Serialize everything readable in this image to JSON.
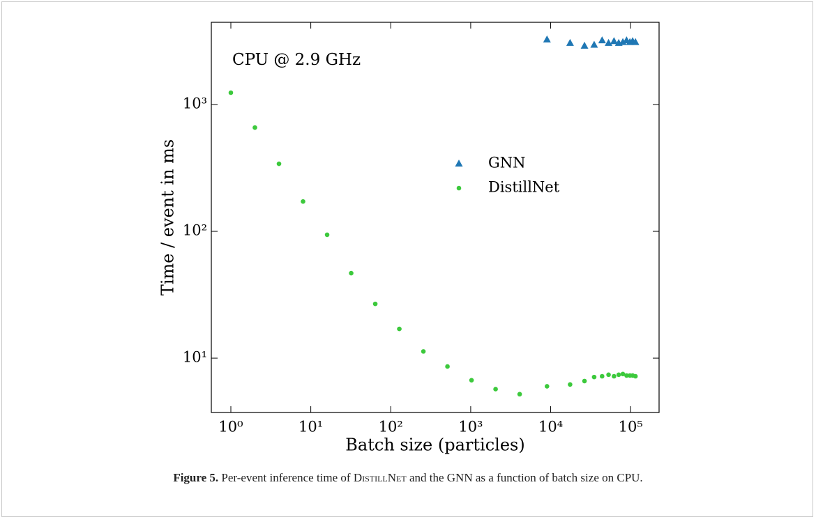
{
  "chart_data": {
    "type": "scatter",
    "annotation": "CPU @ 2.9 GHz",
    "x_label": "Batch size (particles)",
    "y_label": "Time / event in ms",
    "xscale": "log",
    "yscale": "log",
    "xlim": [
      0.57,
      227000
    ],
    "ylim": [
      3.73,
      4450
    ],
    "xticks": [
      {
        "value": 1,
        "label": "10⁰"
      },
      {
        "value": 10,
        "label": "10¹"
      },
      {
        "value": 100,
        "label": "10²"
      },
      {
        "value": 1000,
        "label": "10³"
      },
      {
        "value": 10000,
        "label": "10⁴"
      },
      {
        "value": 100000,
        "label": "10⁵"
      }
    ],
    "yticks": [
      {
        "value": 10,
        "label": "10¹"
      },
      {
        "value": 100,
        "label": "10²"
      },
      {
        "value": 1000,
        "label": "10³"
      }
    ],
    "legend": "center-right",
    "series": [
      {
        "name": "GNN",
        "color": "#1f77b4",
        "marker": "triangle",
        "x": [
          9000,
          17500,
          26500,
          35000,
          44000,
          53000,
          62000,
          71000,
          80000,
          89000,
          98000,
          106000,
          115000
        ],
        "values": [
          3250,
          3050,
          2900,
          2950,
          3200,
          3050,
          3150,
          3050,
          3100,
          3200,
          3100,
          3150,
          3100
        ]
      },
      {
        "name": "DistillNet",
        "color": "#3cc93c",
        "marker": "circle",
        "x": [
          1,
          2,
          4,
          8,
          16,
          32,
          64,
          128,
          256,
          512,
          1024,
          2048,
          4096,
          9000,
          17500,
          26500,
          35000,
          44000,
          53000,
          62000,
          71000,
          80000,
          89000,
          98000,
          106000,
          115000
        ],
        "values": [
          1240,
          658,
          341,
          172,
          94,
          46.8,
          26.8,
          17,
          11.3,
          8.6,
          6.7,
          5.7,
          5.2,
          6.0,
          6.2,
          6.6,
          7.1,
          7.2,
          7.4,
          7.2,
          7.4,
          7.5,
          7.3,
          7.3,
          7.3,
          7.2
        ]
      }
    ]
  },
  "caption": {
    "label": "Figure 5.",
    "before": "Per-event inference time of",
    "name": "DistillNet",
    "after": "and the GNN as a function of batch size on CPU."
  }
}
